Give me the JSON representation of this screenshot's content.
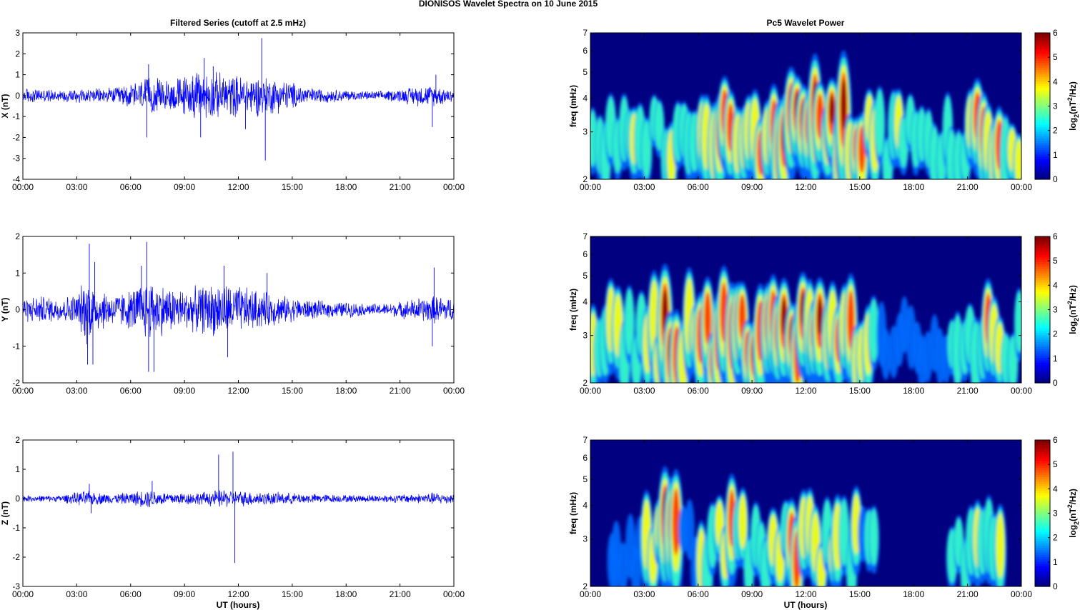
{
  "figure_title": "DIONISOS Wavelet Spectra on 10 June      2015",
  "left_title": "Filtered Series (cutoff at 2.5 mHz)",
  "right_title": "Pc5 Wavelet Power",
  "xlabel": "UT (hours)",
  "colors": {
    "series_line": "#0000ff",
    "axis": "#000000",
    "background": "#ffffff"
  },
  "chart_data": [
    {
      "type": "line",
      "component": "X",
      "ylabel": "X (nT)",
      "ylim": [
        -4,
        3
      ],
      "yticks": [
        "3",
        "2",
        "1",
        "0",
        "-1",
        "-2",
        "-3",
        "-4"
      ],
      "xlim_hours": [
        0,
        24
      ],
      "xticks": [
        "00:00",
        "03:00",
        "06:00",
        "09:00",
        "12:00",
        "15:00",
        "18:00",
        "21:00",
        "00:00"
      ],
      "baseline_amplitude": [
        [
          0,
          0.35
        ],
        [
          1,
          0.3
        ],
        [
          2,
          0.25
        ],
        [
          3,
          0.35
        ],
        [
          4,
          0.3
        ],
        [
          5,
          0.35
        ],
        [
          6,
          0.55
        ],
        [
          7,
          0.8
        ],
        [
          8,
          0.7
        ],
        [
          9,
          0.9
        ],
        [
          10,
          1.1
        ],
        [
          11,
          1.0
        ],
        [
          12,
          0.9
        ],
        [
          13,
          0.9
        ],
        [
          14,
          0.8
        ],
        [
          15,
          0.6
        ],
        [
          16,
          0.35
        ],
        [
          17,
          0.3
        ],
        [
          18,
          0.25
        ],
        [
          19,
          0.2
        ],
        [
          20,
          0.2
        ],
        [
          21,
          0.3
        ],
        [
          22,
          0.45
        ],
        [
          23,
          0.45
        ],
        [
          24,
          0.3
        ]
      ],
      "peaks": [
        [
          7.0,
          1.5
        ],
        [
          6.9,
          -2.0
        ],
        [
          10.1,
          1.8
        ],
        [
          10.6,
          1.4
        ],
        [
          13.3,
          2.75
        ],
        [
          13.5,
          -3.1
        ],
        [
          9.9,
          -2.0
        ],
        [
          12.4,
          -1.6
        ],
        [
          22.8,
          -1.5
        ],
        [
          23.0,
          1.0
        ]
      ]
    },
    {
      "type": "line",
      "component": "Y",
      "ylabel": "Y (nT)",
      "ylim": [
        -2,
        2
      ],
      "yticks": [
        "2",
        "1",
        "0",
        "-1",
        "-2"
      ],
      "xlim_hours": [
        0,
        24
      ],
      "xticks": [
        "00:00",
        "03:00",
        "06:00",
        "09:00",
        "12:00",
        "15:00",
        "18:00",
        "21:00",
        "00:00"
      ],
      "baseline_amplitude": [
        [
          0,
          0.3
        ],
        [
          1,
          0.35
        ],
        [
          2,
          0.3
        ],
        [
          3,
          0.4
        ],
        [
          3.6,
          0.9
        ],
        [
          4,
          0.6
        ],
        [
          5,
          0.4
        ],
        [
          6,
          0.5
        ],
        [
          7,
          0.8
        ],
        [
          8,
          0.6
        ],
        [
          9,
          0.5
        ],
        [
          10,
          0.6
        ],
        [
          11,
          0.7
        ],
        [
          12,
          0.6
        ],
        [
          13,
          0.5
        ],
        [
          14,
          0.4
        ],
        [
          15,
          0.3
        ],
        [
          16,
          0.25
        ],
        [
          17,
          0.2
        ],
        [
          18,
          0.2
        ],
        [
          19,
          0.15
        ],
        [
          20,
          0.15
        ],
        [
          21,
          0.2
        ],
        [
          22,
          0.3
        ],
        [
          23,
          0.35
        ],
        [
          24,
          0.3
        ]
      ],
      "peaks": [
        [
          3.7,
          1.8
        ],
        [
          3.6,
          -1.5
        ],
        [
          4.0,
          1.3
        ],
        [
          3.9,
          -1.5
        ],
        [
          6.9,
          1.85
        ],
        [
          7.0,
          -1.7
        ],
        [
          7.3,
          -1.7
        ],
        [
          6.6,
          1.2
        ],
        [
          11.2,
          1.2
        ],
        [
          11.4,
          -1.3
        ],
        [
          13.6,
          1.0
        ],
        [
          22.9,
          1.15
        ],
        [
          22.8,
          -1.0
        ]
      ]
    },
    {
      "type": "line",
      "component": "Z",
      "ylabel": "Z (nT)",
      "ylim": [
        -3,
        2
      ],
      "yticks": [
        "2",
        "1",
        "0",
        "-1",
        "-2",
        "-3"
      ],
      "xlim_hours": [
        0,
        24
      ],
      "xticks": [
        "00:00",
        "03:00",
        "06:00",
        "09:00",
        "12:00",
        "15:00",
        "18:00",
        "21:00",
        "00:00"
      ],
      "baseline_amplitude": [
        [
          0,
          0.1
        ],
        [
          2,
          0.1
        ],
        [
          3.5,
          0.25
        ],
        [
          4,
          0.2
        ],
        [
          5,
          0.15
        ],
        [
          6,
          0.2
        ],
        [
          7,
          0.3
        ],
        [
          8,
          0.2
        ],
        [
          10,
          0.2
        ],
        [
          11,
          0.3
        ],
        [
          12,
          0.25
        ],
        [
          14,
          0.2
        ],
        [
          16,
          0.15
        ],
        [
          18,
          0.12
        ],
        [
          20,
          0.12
        ],
        [
          22,
          0.15
        ],
        [
          23,
          0.2
        ],
        [
          24,
          0.15
        ]
      ],
      "peaks": [
        [
          3.7,
          0.5
        ],
        [
          3.8,
          -0.5
        ],
        [
          7.2,
          0.6
        ],
        [
          10.9,
          1.5
        ],
        [
          11.7,
          1.6
        ],
        [
          11.8,
          -2.2
        ]
      ]
    },
    {
      "type": "heatmap",
      "component": "X",
      "ylabel": "freq (mHz)",
      "y_scale": "log",
      "ylim_mHz": [
        2,
        7
      ],
      "yticks": [
        "7",
        "6",
        "5",
        "4",
        "3",
        "2"
      ],
      "xlim_hours": [
        0,
        24
      ],
      "xticks": [
        "00:00",
        "03:00",
        "06:00",
        "09:00",
        "12:00",
        "15:00",
        "18:00",
        "21:00",
        "00:00"
      ],
      "colorbar_label": "log2(nT2/Hz)",
      "colorbar_ticks": [
        "6",
        "5",
        "4",
        "3",
        "2",
        "1",
        "0"
      ],
      "clim": [
        0,
        6
      ],
      "activity_by_hour": [
        0.45,
        0.5,
        0.55,
        0.45,
        0.5,
        0.5,
        0.65,
        0.75,
        0.7,
        0.8,
        0.95,
        0.95,
        1.0,
        0.95,
        0.9,
        0.75,
        0.5,
        0.5,
        0.45,
        0.4,
        0.55,
        0.8,
        0.7,
        0.5
      ]
    },
    {
      "type": "heatmap",
      "component": "Y",
      "ylabel": "freq (mHz)",
      "y_scale": "log",
      "ylim_mHz": [
        2,
        7
      ],
      "yticks": [
        "7",
        "6",
        "5",
        "4",
        "3",
        "2"
      ],
      "xlim_hours": [
        0,
        24
      ],
      "xticks": [
        "00:00",
        "03:00",
        "06:00",
        "09:00",
        "12:00",
        "15:00",
        "18:00",
        "21:00",
        "00:00"
      ],
      "colorbar_label": "log2(nT2/Hz)",
      "colorbar_ticks": [
        "6",
        "5",
        "4",
        "3",
        "2",
        "1",
        "0"
      ],
      "clim": [
        0,
        6
      ],
      "activity_by_hour": [
        0.55,
        0.6,
        0.55,
        0.7,
        0.95,
        0.7,
        0.9,
        0.95,
        0.85,
        0.8,
        0.85,
        0.95,
        0.9,
        0.8,
        0.8,
        0.6,
        0.35,
        0.3,
        0.25,
        0.3,
        0.45,
        0.6,
        0.7,
        0.4
      ]
    },
    {
      "type": "heatmap",
      "component": "Z",
      "ylabel": "freq (mHz)",
      "y_scale": "log",
      "ylim_mHz": [
        2,
        7
      ],
      "yticks": [
        "7",
        "6",
        "5",
        "4",
        "3",
        "2"
      ],
      "xlim_hours": [
        0,
        24
      ],
      "xticks": [
        "00:00",
        "03:00",
        "06:00",
        "09:00",
        "12:00",
        "15:00",
        "18:00",
        "21:00",
        "00:00"
      ],
      "colorbar_label": "log2(nT2/Hz)",
      "colorbar_ticks": [
        "6",
        "5",
        "4",
        "3",
        "2",
        "1",
        "0"
      ],
      "clim": [
        0,
        6
      ],
      "activity_by_hour": [
        0.05,
        0.3,
        0.3,
        0.6,
        0.95,
        0.35,
        0.5,
        0.7,
        0.5,
        0.55,
        0.65,
        0.75,
        0.7,
        0.65,
        0.55,
        0.35,
        0.1,
        0.05,
        0.05,
        0.1,
        0.45,
        0.5,
        0.65,
        0.1
      ]
    }
  ]
}
